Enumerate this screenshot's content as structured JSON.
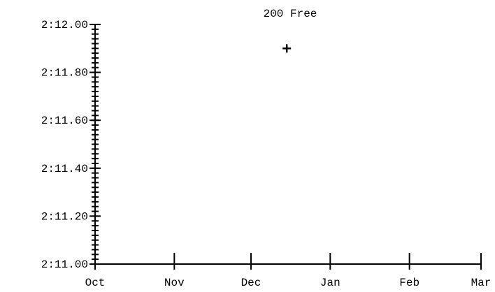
{
  "chart_data": {
    "type": "scatter",
    "title": "200 Free",
    "xlabel": "",
    "ylabel": "",
    "x_ticks": [
      "Oct",
      "Nov",
      "Dec",
      "Jan",
      "Feb",
      "Mar"
    ],
    "y_ticks": [
      "2:11.00",
      "2:11.20",
      "2:11.40",
      "2:11.60",
      "2:11.80",
      "2:12.00"
    ],
    "y_range_seconds": [
      131.0,
      132.0
    ],
    "y_minor_step_seconds": 0.02,
    "series": [
      {
        "marker": "plus",
        "points": [
          {
            "x": "Dec 15",
            "y": "2:11.90"
          }
        ]
      }
    ],
    "grid": false,
    "legend": "none",
    "colors": {
      "axis": "#000000",
      "marker": "#000000",
      "background": "#ffffff"
    }
  }
}
